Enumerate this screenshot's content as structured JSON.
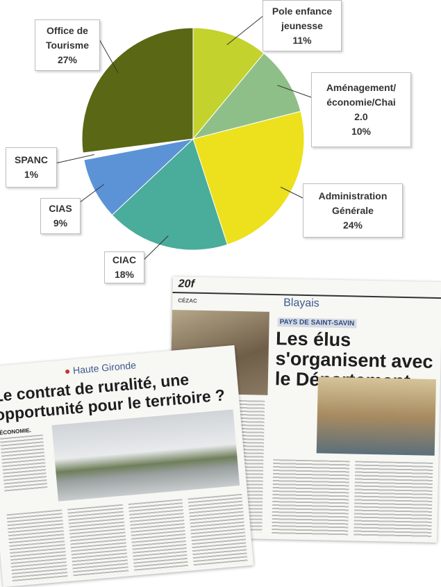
{
  "chart_data": {
    "type": "pie",
    "categories": [
      "Pole enfance\njeunesse",
      "Aménagement/\néconomie/Chai\n2.0",
      "Administration\nGénérale",
      "CIAC",
      "CIAS",
      "SPANC",
      "Office de\nTourisme"
    ],
    "values": [
      11,
      10,
      24,
      18,
      9,
      1,
      27
    ],
    "value_labels": [
      "11%",
      "10%",
      "24%",
      "18%",
      "9%",
      "1%",
      "27%"
    ],
    "colors": [
      "#c3d22c",
      "#8fbf88",
      "#ece11c",
      "#4aac9a",
      "#5b93d6",
      "#ffffff",
      "#5a6714"
    ]
  },
  "clippings": {
    "right": {
      "page": "20f",
      "section": "Blayais",
      "town": "CÉZAC",
      "kicker": "PAYS DE SAINT-SAVIN",
      "headline": "Les élus s'organisent avec le Département"
    },
    "left": {
      "brand": "Haute Gironde",
      "headline": "Le contrat de ruralité, une opportunité pour le territoire ?",
      "kicker": "ÉCONOMIE."
    }
  }
}
